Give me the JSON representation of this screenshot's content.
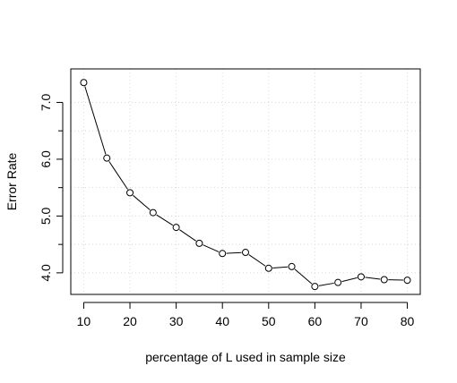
{
  "chart_data": {
    "type": "line",
    "title": "",
    "xlabel": "percentage of L used in sample size",
    "ylabel": "Error Rate",
    "x": [
      10,
      15,
      20,
      25,
      30,
      35,
      40,
      45,
      50,
      55,
      60,
      65,
      70,
      75,
      80
    ],
    "series": [
      {
        "values": [
          7.35,
          6.02,
          5.41,
          5.06,
          4.8,
          4.52,
          4.34,
          4.36,
          4.08,
          4.11,
          3.76,
          3.83,
          3.93,
          3.88,
          3.87
        ]
      }
    ],
    "xlim": [
      7.2,
      82.8
    ],
    "ylim": [
      3.62,
      7.59
    ],
    "xticks": [
      10,
      20,
      30,
      40,
      50,
      60,
      70,
      80
    ],
    "yticks": [
      4.0,
      5.0,
      6.0,
      7.0
    ],
    "xtick_labels": [
      "10",
      "20",
      "30",
      "40",
      "50",
      "60",
      "70",
      "80"
    ],
    "ytick_labels": [
      "4.0",
      "5.0",
      "6.0",
      "7.0"
    ],
    "y_minor_ticks": [
      4.5,
      5.5,
      6.5
    ],
    "grid": true,
    "grid_style": "dotted",
    "marker": "open-circle",
    "legend": "none"
  }
}
